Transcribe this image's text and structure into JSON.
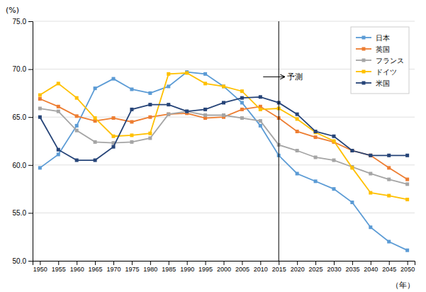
{
  "chart_data": {
    "type": "line",
    "x": [
      1950,
      1955,
      1960,
      1965,
      1970,
      1975,
      1980,
      1985,
      1990,
      1995,
      2000,
      2005,
      2010,
      2015,
      2020,
      2025,
      2030,
      2035,
      2040,
      2045,
      2050
    ],
    "series": [
      {
        "name": "日本",
        "color": "#5B9BD5",
        "values": [
          59.7,
          61.1,
          64.1,
          68.0,
          69.0,
          67.9,
          67.5,
          68.2,
          69.7,
          69.5,
          68.2,
          66.5,
          64.1,
          61.0,
          59.1,
          58.3,
          57.5,
          56.1,
          53.5,
          52.0,
          51.1
        ]
      },
      {
        "name": "英国",
        "color": "#ED7D31",
        "values": [
          66.9,
          66.1,
          65.1,
          64.6,
          64.9,
          64.5,
          65.0,
          65.3,
          65.4,
          64.9,
          65.0,
          65.8,
          66.1,
          64.9,
          63.5,
          62.9,
          62.4,
          61.5,
          61.0,
          59.7,
          58.5
        ]
      },
      {
        "name": "フランス",
        "color": "#A5A5A5",
        "values": [
          65.9,
          65.6,
          63.6,
          62.4,
          62.3,
          62.4,
          62.8,
          65.3,
          65.6,
          65.2,
          65.2,
          64.9,
          64.6,
          62.1,
          61.5,
          60.8,
          60.5,
          59.8,
          59.1,
          58.5,
          58.0
        ]
      },
      {
        "name": "ドイツ",
        "color": "#FFC000",
        "values": [
          67.3,
          68.5,
          67.0,
          64.9,
          63.0,
          63.1,
          63.3,
          69.5,
          69.6,
          68.5,
          68.2,
          67.7,
          65.8,
          65.9,
          64.8,
          63.4,
          62.5,
          59.7,
          57.1,
          56.8,
          56.4
        ]
      },
      {
        "name": "米国",
        "color": "#264478",
        "values": [
          65.0,
          61.6,
          60.5,
          60.5,
          61.9,
          65.8,
          66.3,
          66.3,
          65.6,
          65.8,
          66.5,
          67.0,
          67.1,
          66.5,
          65.3,
          63.5,
          63.0,
          61.5,
          61.0,
          61.0,
          61.0
        ]
      }
    ],
    "xlim": [
      1948,
      2052
    ],
    "xticks": [
      1950,
      1955,
      1960,
      1965,
      1970,
      1975,
      1980,
      1985,
      1990,
      1995,
      2000,
      2005,
      2010,
      2015,
      2020,
      2025,
      2030,
      2035,
      2040,
      2045,
      2050
    ],
    "ylim": [
      50.0,
      75.0
    ],
    "yticks": [
      {
        "value": 50.0,
        "label": "50.0"
      },
      {
        "value": 55.0,
        "label": "55.0"
      },
      {
        "value": 60.0,
        "label": "60.0"
      },
      {
        "value": 65.0,
        "label": "65.0"
      },
      {
        "value": 70.0,
        "label": "70.0"
      },
      {
        "value": 75.0,
        "label": "75.0"
      }
    ],
    "y_label": "(%)",
    "x_label": "（年）",
    "vline": 2015,
    "annotations": [
      {
        "text": "予測",
        "x": 2015,
        "y": 69.2
      }
    ],
    "grid": true,
    "legend": "upper right",
    "marker": "square"
  }
}
